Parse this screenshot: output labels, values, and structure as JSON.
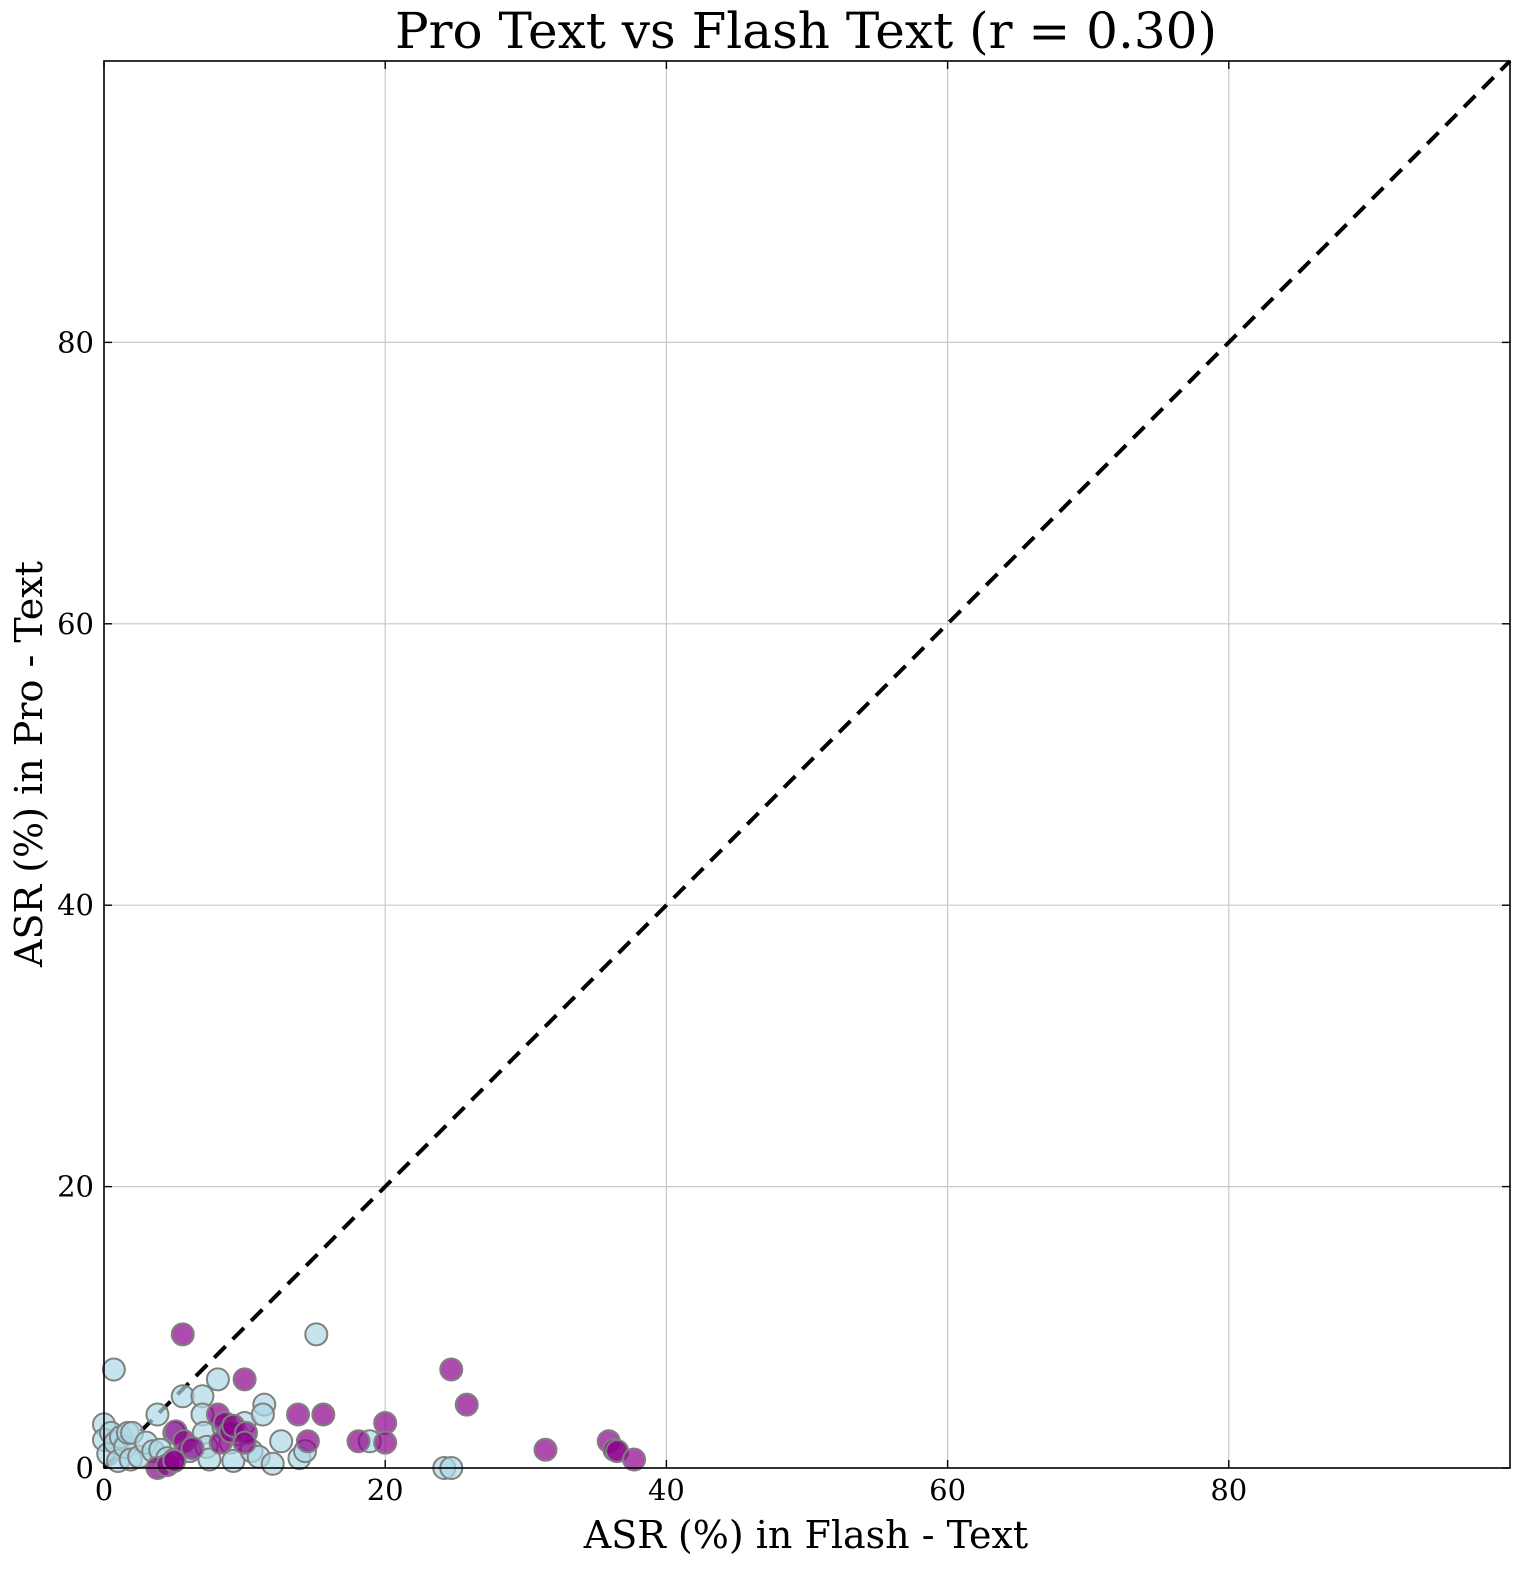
{
  "chart_data": {
    "type": "scatter",
    "title": "Pro Text vs Flash Text (r = 0.30)",
    "xlabel": "ASR (%) in Flash - Text",
    "ylabel": "ASR (%) in Pro - Text",
    "xlim": [
      0,
      100
    ],
    "ylim": [
      0,
      100
    ],
    "xticks": [
      0,
      20,
      40,
      60,
      80
    ],
    "yticks": [
      0,
      20,
      40,
      60,
      80
    ],
    "xtick_labels": [
      "0",
      "20",
      "40",
      "60",
      "80"
    ],
    "ytick_labels": [
      "0",
      "20",
      "40",
      "60",
      "80"
    ],
    "grid": true,
    "reference_line": "y = x (dashed black)",
    "series": [
      {
        "color": "#add8e6",
        "edge_color": "#808080",
        "opacity": 0.7,
        "points": [
          [
            0.0,
            3.1
          ],
          [
            0.0,
            2.0
          ],
          [
            0.3,
            1.0
          ],
          [
            0.5,
            2.5
          ],
          [
            0.8,
            1.8
          ],
          [
            0.7,
            7.0
          ],
          [
            1.0,
            0.5
          ],
          [
            1.2,
            2.2
          ],
          [
            1.5,
            1.5
          ],
          [
            1.7,
            2.5
          ],
          [
            1.9,
            0.6
          ],
          [
            2.0,
            2.5
          ],
          [
            2.5,
            0.8
          ],
          [
            3.0,
            1.8
          ],
          [
            3.5,
            1.2
          ],
          [
            3.8,
            3.8
          ],
          [
            4.0,
            1.3
          ],
          [
            4.5,
            0.7
          ],
          [
            5.0,
            2.5
          ],
          [
            5.6,
            5.1
          ],
          [
            6.1,
            1.2
          ],
          [
            7.0,
            5.1
          ],
          [
            7.0,
            3.8
          ],
          [
            7.1,
            2.5
          ],
          [
            7.3,
            1.5
          ],
          [
            7.5,
            0.6
          ],
          [
            8.1,
            6.3
          ],
          [
            8.5,
            2.9
          ],
          [
            9.0,
            1.8
          ],
          [
            9.2,
            0.5
          ],
          [
            9.5,
            2.4
          ],
          [
            10.0,
            3.2
          ],
          [
            10.5,
            1.2
          ],
          [
            11.0,
            0.8
          ],
          [
            11.4,
            4.5
          ],
          [
            11.3,
            3.8
          ],
          [
            12.0,
            0.3
          ],
          [
            12.6,
            1.9
          ],
          [
            13.9,
            0.7
          ],
          [
            14.3,
            1.2
          ],
          [
            15.1,
            9.5
          ],
          [
            18.9,
            1.9
          ],
          [
            24.2,
            0.0
          ],
          [
            24.7,
            0.0
          ]
        ]
      },
      {
        "color": "#8b008b",
        "edge_color": "#808080",
        "opacity": 0.7,
        "points": [
          [
            3.8,
            0.0
          ],
          [
            4.5,
            0.2
          ],
          [
            5.0,
            0.6
          ],
          [
            5.0,
            0.5
          ],
          [
            5.1,
            2.6
          ],
          [
            5.6,
            9.5
          ],
          [
            5.7,
            1.9
          ],
          [
            6.3,
            1.4
          ],
          [
            8.1,
            3.8
          ],
          [
            8.3,
            1.8
          ],
          [
            8.6,
            3.2
          ],
          [
            9.0,
            2.6
          ],
          [
            9.2,
            3.0
          ],
          [
            10.0,
            6.3
          ],
          [
            10.1,
            2.5
          ],
          [
            10.0,
            1.8
          ],
          [
            13.8,
            3.8
          ],
          [
            14.5,
            1.9
          ],
          [
            15.6,
            3.8
          ],
          [
            18.1,
            1.9
          ],
          [
            20.0,
            3.2
          ],
          [
            20.0,
            1.8
          ],
          [
            24.7,
            7.0
          ],
          [
            25.8,
            4.5
          ],
          [
            31.4,
            1.3
          ],
          [
            35.9,
            1.9
          ],
          [
            36.3,
            1.3
          ],
          [
            36.5,
            1.2
          ],
          [
            37.7,
            0.6
          ]
        ]
      }
    ]
  }
}
